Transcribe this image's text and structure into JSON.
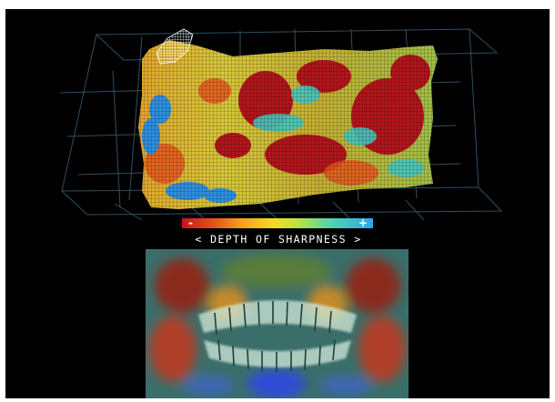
{
  "depth_scale": {
    "low_sign": "-",
    "high_sign": "+",
    "caption_left": "<",
    "caption": "DEPTH OF SHARPNESS",
    "caption_right": ">",
    "colors": [
      "#c8141e",
      "#e4501a",
      "#f7a31a",
      "#f4dc1f",
      "#bfe43a",
      "#4dd6b0",
      "#2ea6e8"
    ]
  },
  "views": {
    "mesh_icon": "3d-wireframe-surface",
    "xray_icon": "panoramic-dental-radiograph"
  }
}
